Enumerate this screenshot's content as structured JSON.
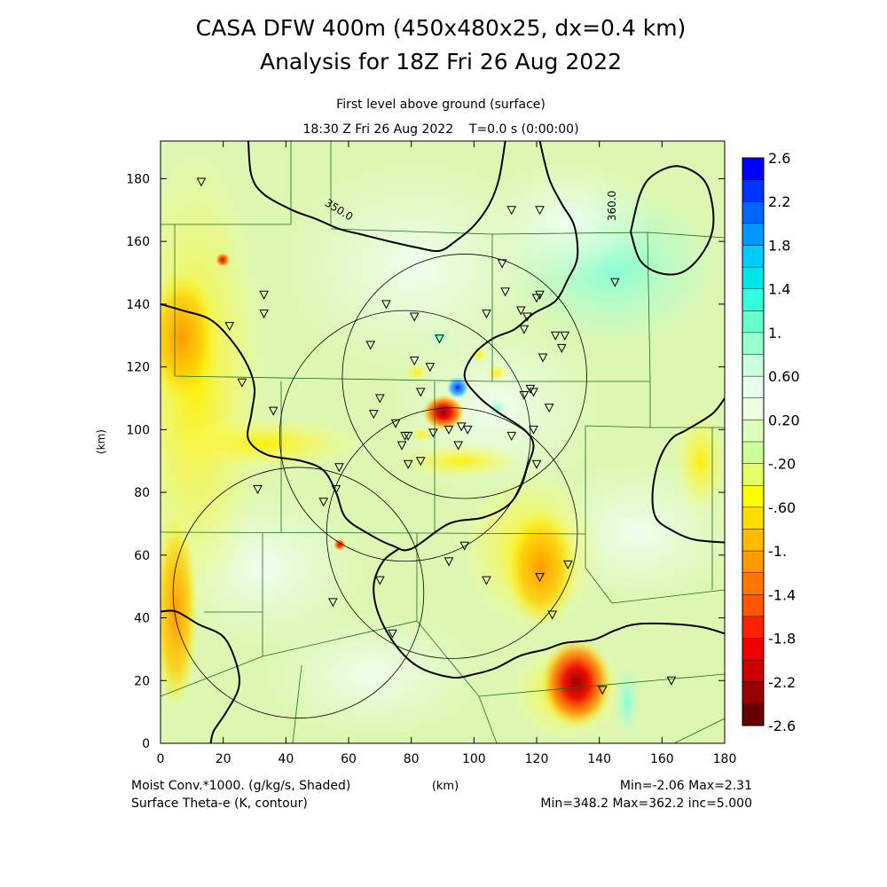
{
  "header": {
    "title_line1": "CASA DFW 400m (450x480x25, dx=0.4 km)",
    "title_line2": "Analysis for 18Z Fri 26 Aug 2022",
    "subtitle_line1": "First level above ground (surface)",
    "subtitle_line2": "18:30 Z Fri 26 Aug 2022    T=0.0 s (0:00:00)"
  },
  "axes": {
    "x_label": "(km)",
    "y_label": "(km)",
    "x_ticks": [
      "0",
      "20",
      "40",
      "60",
      "80",
      "100",
      "120",
      "140",
      "160",
      "180"
    ],
    "y_ticks": [
      "0",
      "20",
      "40",
      "60",
      "80",
      "100",
      "120",
      "140",
      "160",
      "180"
    ],
    "x_range": [
      0,
      180
    ],
    "y_range": [
      0,
      192
    ]
  },
  "colorbar": {
    "labels": [
      "2.6",
      "2.2",
      "1.8",
      "1.4",
      "1.",
      "0.60",
      "0.20",
      "-.20",
      "-.60",
      "-1.",
      "-1.4",
      "-1.8",
      "-2.2",
      "-2.6"
    ],
    "range": [
      -2.6,
      2.6
    ],
    "colors": [
      "#0000ff",
      "#0033ff",
      "#0066ff",
      "#0099ff",
      "#00ccff",
      "#00e5e5",
      "#33ffdd",
      "#66ffcc",
      "#99ffcc",
      "#ccffdd",
      "#e6ffee",
      "#eeffe0",
      "#ddffbb",
      "#ccff99",
      "#e6ff66",
      "#ffff00",
      "#ffdd00",
      "#ffbb00",
      "#ff9900",
      "#ff7700",
      "#ff5500",
      "#ff2200",
      "#ee0000",
      "#cc0000",
      "#990000",
      "#660000"
    ]
  },
  "contour_labels": [
    "350.0",
    "360.0"
  ],
  "footer": {
    "left_line1": "Moist Conv.*1000. (g/kg/s, Shaded)",
    "left_line2": "Surface Theta-e (K, contour)",
    "center": "(km)",
    "right_line1": "Min=-2.06 Max=2.31",
    "right_line2": "Min=348.2 Max=362.2 inc=5.000"
  },
  "radar_rings_km": [
    {
      "x": 97,
      "y": 117,
      "r": 39
    },
    {
      "x": 78,
      "y": 98,
      "r": 40
    },
    {
      "x": 93,
      "y": 67,
      "r": 40
    },
    {
      "x": 44,
      "y": 48,
      "r": 40
    }
  ],
  "stations": [
    [
      13,
      179
    ],
    [
      33,
      143
    ],
    [
      33,
      137
    ],
    [
      22,
      133
    ],
    [
      26,
      115
    ],
    [
      36,
      106
    ],
    [
      67,
      127
    ],
    [
      72,
      140
    ],
    [
      81,
      136
    ],
    [
      81,
      122
    ],
    [
      86,
      120
    ],
    [
      89,
      129
    ],
    [
      83,
      112
    ],
    [
      77,
      95
    ],
    [
      78,
      98
    ],
    [
      79,
      98
    ],
    [
      83,
      90
    ],
    [
      87,
      99
    ],
    [
      68,
      105
    ],
    [
      70,
      110
    ],
    [
      75,
      102
    ],
    [
      79,
      89
    ],
    [
      104,
      137
    ],
    [
      110,
      144
    ],
    [
      109,
      153
    ],
    [
      115,
      138
    ],
    [
      116,
      132
    ],
    [
      117,
      136
    ],
    [
      120,
      142
    ],
    [
      121,
      143
    ],
    [
      112,
      170
    ],
    [
      121,
      170
    ],
    [
      126,
      130
    ],
    [
      128,
      126
    ],
    [
      129,
      130
    ],
    [
      122,
      123
    ],
    [
      119,
      112
    ],
    [
      116,
      111
    ],
    [
      118,
      113
    ],
    [
      124,
      107
    ],
    [
      120,
      89
    ],
    [
      119,
      100
    ],
    [
      112,
      98
    ],
    [
      98,
      100
    ],
    [
      96,
      101
    ],
    [
      92,
      100
    ],
    [
      95,
      95
    ],
    [
      57,
      88
    ],
    [
      56,
      81
    ],
    [
      52,
      77
    ],
    [
      31,
      81
    ],
    [
      55,
      45
    ],
    [
      70,
      52
    ],
    [
      74,
      35
    ],
    [
      92,
      58
    ],
    [
      97,
      63
    ],
    [
      104,
      52
    ],
    [
      121,
      53
    ],
    [
      125,
      41
    ],
    [
      130,
      57
    ],
    [
      141,
      17
    ],
    [
      145,
      147
    ],
    [
      163,
      20
    ]
  ],
  "contours_km": [
    [
      [
        0,
        140
      ],
      [
        7,
        138
      ],
      [
        16,
        135
      ],
      [
        23,
        128
      ],
      [
        28,
        120
      ],
      [
        30,
        113
      ],
      [
        29,
        105
      ],
      [
        28,
        97
      ],
      [
        34,
        92
      ],
      [
        45,
        90
      ],
      [
        52,
        87
      ],
      [
        56,
        80
      ],
      [
        59,
        72
      ],
      [
        66,
        67
      ],
      [
        74,
        63
      ],
      [
        80,
        62
      ],
      [
        92,
        70
      ],
      [
        103,
        72
      ],
      [
        111,
        76
      ],
      [
        115,
        82
      ],
      [
        117,
        88
      ],
      [
        119,
        95
      ],
      [
        116,
        100
      ],
      [
        107,
        106
      ],
      [
        101,
        111
      ],
      [
        97,
        117
      ],
      [
        100,
        124
      ],
      [
        106,
        129
      ],
      [
        113,
        132
      ],
      [
        119,
        137
      ],
      [
        126,
        141
      ],
      [
        130,
        148
      ],
      [
        133,
        155
      ],
      [
        132,
        165
      ],
      [
        128,
        172
      ],
      [
        124,
        180
      ],
      [
        121,
        192
      ]
    ],
    [
      [
        28,
        192
      ],
      [
        29,
        181
      ],
      [
        33,
        175
      ],
      [
        42,
        170
      ],
      [
        50,
        167
      ],
      [
        57,
        164
      ],
      [
        65,
        162
      ],
      [
        73,
        160
      ],
      [
        82,
        158
      ],
      [
        89,
        157
      ],
      [
        94,
        160
      ],
      [
        100,
        165
      ],
      [
        105,
        172
      ],
      [
        108,
        180
      ],
      [
        110,
        192
      ]
    ],
    [
      [
        150,
        163
      ],
      [
        153,
        175
      ],
      [
        157,
        181
      ],
      [
        165,
        184
      ],
      [
        173,
        180
      ],
      [
        176,
        172
      ],
      [
        176,
        163
      ],
      [
        172,
        155
      ],
      [
        166,
        150
      ],
      [
        159,
        150
      ],
      [
        153,
        154
      ],
      [
        150,
        163
      ]
    ],
    [
      [
        180,
        110
      ],
      [
        176,
        105
      ],
      [
        168,
        100
      ],
      [
        163,
        97
      ],
      [
        159,
        90
      ],
      [
        157,
        80
      ],
      [
        158,
        72
      ],
      [
        163,
        68
      ],
      [
        170,
        65
      ],
      [
        180,
        64
      ]
    ],
    [
      [
        0,
        42
      ],
      [
        5,
        42
      ],
      [
        12,
        38
      ],
      [
        20,
        34
      ],
      [
        24,
        26
      ],
      [
        25,
        18
      ],
      [
        21,
        10
      ],
      [
        17,
        4
      ],
      [
        16,
        0
      ]
    ],
    [
      [
        180,
        35
      ],
      [
        173,
        37
      ],
      [
        164,
        38
      ],
      [
        152,
        38
      ],
      [
        145,
        36
      ],
      [
        138,
        33
      ],
      [
        129,
        32
      ],
      [
        123,
        30
      ],
      [
        115,
        28
      ],
      [
        107,
        24
      ],
      [
        100,
        22
      ],
      [
        93,
        21
      ],
      [
        83,
        24
      ],
      [
        76,
        30
      ],
      [
        70,
        40
      ],
      [
        68,
        50
      ],
      [
        71,
        58
      ],
      [
        76,
        62
      ]
    ]
  ]
}
